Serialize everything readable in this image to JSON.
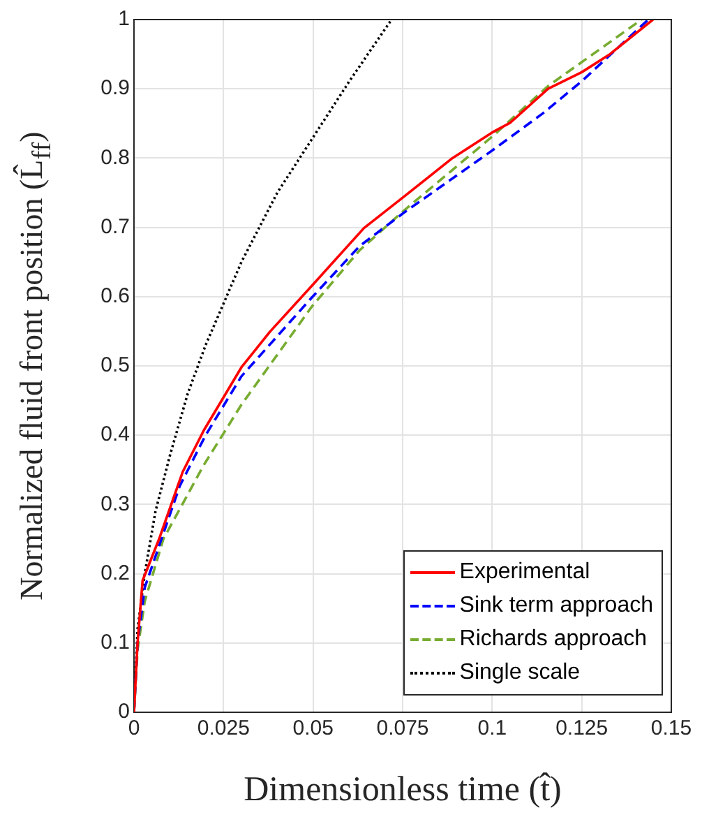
{
  "chart_data": {
    "type": "line",
    "xlabel": "Dimensionless time (t̂)",
    "ylabel": "Normalized fluid front position (L̂$_{ff}$)",
    "xlim": [
      0,
      0.15
    ],
    "ylim": [
      0,
      1
    ],
    "xticks": [
      0,
      0.025,
      0.05,
      0.075,
      0.1,
      0.125,
      0.15
    ],
    "yticks": [
      0,
      0.1,
      0.2,
      0.3,
      0.4,
      0.5,
      0.6,
      0.7,
      0.8,
      0.9,
      1
    ],
    "grid": true,
    "legend": "bottom right",
    "marker": "none",
    "series": [
      {
        "name": "Experimental",
        "color": "#ff0000",
        "line_style": "solid",
        "x": [
          0,
          0.001,
          0.0024,
          0.007,
          0.0136,
          0.0195,
          0.03,
          0.0379,
          0.0497,
          0.0642,
          0.0753,
          0.0889,
          0.1,
          0.105,
          0.1156,
          0.125,
          0.1326,
          0.1449
        ],
        "values": [
          0,
          0.1,
          0.19,
          0.25,
          0.347,
          0.407,
          0.498,
          0.549,
          0.616,
          0.699,
          0.744,
          0.8,
          0.837,
          0.851,
          0.9,
          0.924,
          0.949,
          1
        ]
      },
      {
        "name": "Sink term approach",
        "color": "#0000ff",
        "line_style": "dashed",
        "x": [
          0,
          0.001,
          0.003,
          0.007,
          0.0128,
          0.02,
          0.03,
          0.0497,
          0.063,
          0.0753,
          0.1,
          0.114,
          0.125,
          0.1436
        ],
        "values": [
          0,
          0.1,
          0.18,
          0.24,
          0.327,
          0.4,
          0.485,
          0.599,
          0.673,
          0.721,
          0.811,
          0.864,
          0.911,
          1
        ]
      },
      {
        "name": "Richards approach",
        "color": "#77ac30",
        "line_style": "dashed",
        "x": [
          0,
          0.001,
          0.003,
          0.0082,
          0.0195,
          0.03,
          0.0497,
          0.063,
          0.0753,
          0.1,
          0.1156,
          0.1417
        ],
        "values": [
          0,
          0.09,
          0.16,
          0.25,
          0.357,
          0.444,
          0.586,
          0.667,
          0.724,
          0.831,
          0.904,
          1
        ]
      },
      {
        "name": "Single scale",
        "color": "#000000",
        "line_style": "dotted",
        "x": [
          0,
          0.001,
          0.003,
          0.006,
          0.01,
          0.015,
          0.02,
          0.03,
          0.04,
          0.05,
          0.06,
          0.0719
        ],
        "values": [
          0,
          0.12,
          0.2,
          0.29,
          0.37,
          0.46,
          0.53,
          0.65,
          0.75,
          0.83,
          0.91,
          1
        ]
      }
    ]
  }
}
